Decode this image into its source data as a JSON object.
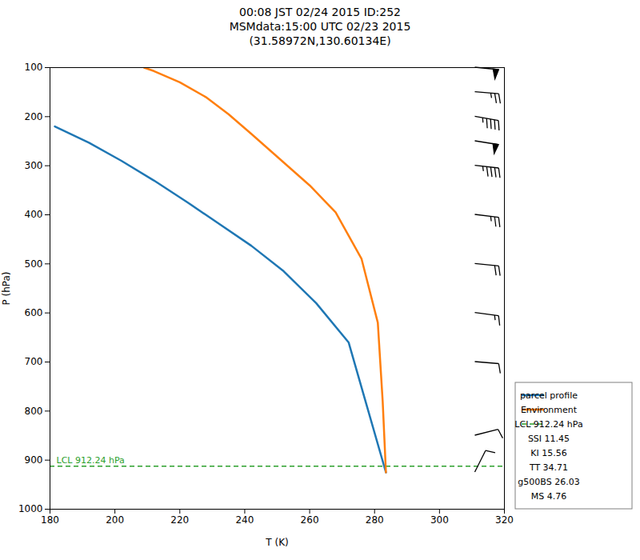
{
  "chart_data": {
    "type": "line",
    "title": "00:08 JST 02/24 2015  ID:252\nMSMdata:15:00 UTC 02/23 2015\n(31.58972N,130.60134E)",
    "xlabel": "T (K)",
    "ylabel": "P (hPa)",
    "xlim": [
      180,
      320
    ],
    "ylim": [
      1000,
      100
    ],
    "xticks": [
      180,
      200,
      220,
      240,
      260,
      280,
      300,
      320
    ],
    "yticks": [
      100,
      200,
      300,
      400,
      500,
      600,
      700,
      800,
      900,
      1000
    ],
    "grid": false,
    "legend": "lower right",
    "series": [
      {
        "name": "parcel profile",
        "color": "#1f77b4",
        "x": [
          181.5,
          192,
          202,
          212,
          222,
          232,
          242,
          252,
          262,
          272,
          283.5
        ],
        "y": [
          220,
          253,
          290,
          330,
          373,
          418,
          463,
          515,
          580,
          660,
          925
        ]
      },
      {
        "name": "Environment",
        "color": "#ff7f0e",
        "x": [
          209.0,
          212.0,
          220.0,
          228.0,
          235.0,
          242.0,
          248.0,
          260.0,
          268.0,
          276.0,
          281.0,
          282.5,
          283.5
        ],
        "y": [
          100,
          107,
          130,
          160,
          195,
          235,
          270,
          340,
          395,
          490,
          620,
          780,
          925
        ]
      }
    ],
    "lcl": {
      "label": "LCL 912.24 hPa",
      "value": 912.24,
      "color": "#2ca02c",
      "line_style": "dashed"
    },
    "stats": [
      "SSI 11.45",
      "KI 15.56",
      "TT 34.71",
      "g500BS 26.03",
      "MS 4.76"
    ],
    "wind_barbs": {
      "x": 311,
      "pressure": [
        100,
        150,
        200,
        250,
        300,
        400,
        500,
        600,
        700,
        850,
        925
      ],
      "u": [
        -50,
        -25,
        -45,
        -50,
        -45,
        -25,
        -20,
        -15,
        -12,
        -8,
        -5
      ],
      "v": [
        5,
        2,
        8,
        8,
        5,
        3,
        2,
        2,
        1,
        -2,
        -10
      ]
    }
  }
}
